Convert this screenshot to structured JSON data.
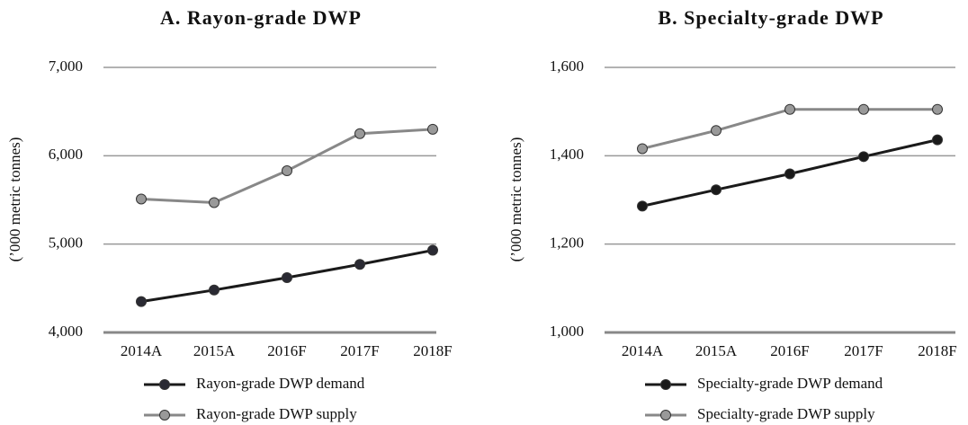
{
  "chart_data": [
    {
      "type": "line",
      "title": "A. Rayon-grade DWP",
      "y_label": "(’000 metric tonnes)",
      "categories": [
        "2014A",
        "2015A",
        "2016F",
        "2017F",
        "2018F"
      ],
      "series": [
        {
          "name": "Rayon-grade DWP demand",
          "color": "#1a1a1a",
          "marker_color": "#2a2a33",
          "values": [
            4350,
            4480,
            4620,
            4770,
            4930
          ]
        },
        {
          "name": "Rayon-grade DWP supply",
          "color": "#888888",
          "marker_color": "#999999",
          "values": [
            5510,
            5470,
            5830,
            6250,
            6300
          ]
        }
      ],
      "ylim": [
        4000,
        7000
      ],
      "yticks": [
        {
          "value": 4000,
          "label": "4,000"
        },
        {
          "value": 5000,
          "label": "5,000"
        },
        {
          "value": 6000,
          "label": "6,000"
        },
        {
          "value": 7000,
          "label": "7,000"
        }
      ],
      "grid": true
    },
    {
      "type": "line",
      "title": "B. Specialty-grade DWP",
      "y_label": "(’000 metric tonnes)",
      "categories": [
        "2014A",
        "2015A",
        "2016F",
        "2017F",
        "2018F"
      ],
      "series": [
        {
          "name": "Specialty-grade DWP demand",
          "color": "#1a1a1a",
          "marker_color": "#1a1a1a",
          "values": [
            1286,
            1323,
            1359,
            1398,
            1436
          ]
        },
        {
          "name": "Specialty-grade DWP supply",
          "color": "#888888",
          "marker_color": "#999999",
          "values": [
            1416,
            1457,
            1505,
            1505,
            1505
          ]
        }
      ],
      "ylim": [
        1000,
        1600
      ],
      "yticks": [
        {
          "value": 1000,
          "label": "1,000"
        },
        {
          "value": 1200,
          "label": "1,200"
        },
        {
          "value": 1400,
          "label": "1,400"
        },
        {
          "value": 1600,
          "label": "1,600"
        }
      ],
      "grid": true
    }
  ]
}
